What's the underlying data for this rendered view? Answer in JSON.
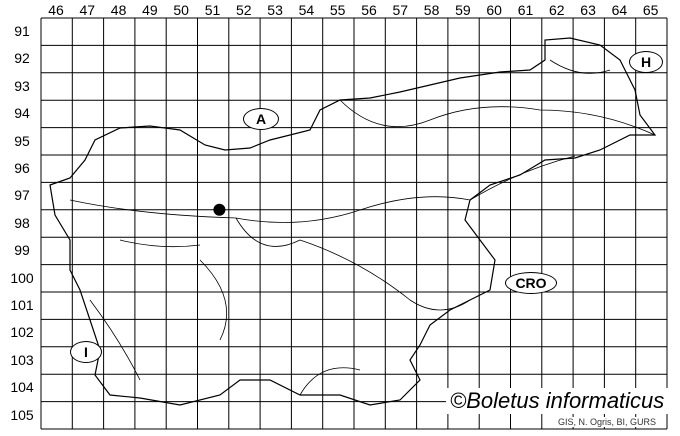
{
  "columns": [
    "46",
    "47",
    "48",
    "49",
    "50",
    "51",
    "52",
    "53",
    "54",
    "55",
    "56",
    "57",
    "58",
    "59",
    "60",
    "61",
    "62",
    "63",
    "64",
    "65"
  ],
  "rows": [
    "91",
    "92",
    "93",
    "94",
    "95",
    "96",
    "97",
    "98",
    "99",
    "100",
    "101",
    "102",
    "103",
    "104",
    "105"
  ],
  "countries": {
    "austria": "A",
    "hungary": "H",
    "croatia": "CRO",
    "italy": "I"
  },
  "occurrence": {
    "column": "51",
    "row": "97"
  },
  "credit": "©Boletus informaticus",
  "source": "GIS, N. Ogris, BI, GURS",
  "colors": {
    "grid": "#000000",
    "marker": "#000000"
  }
}
